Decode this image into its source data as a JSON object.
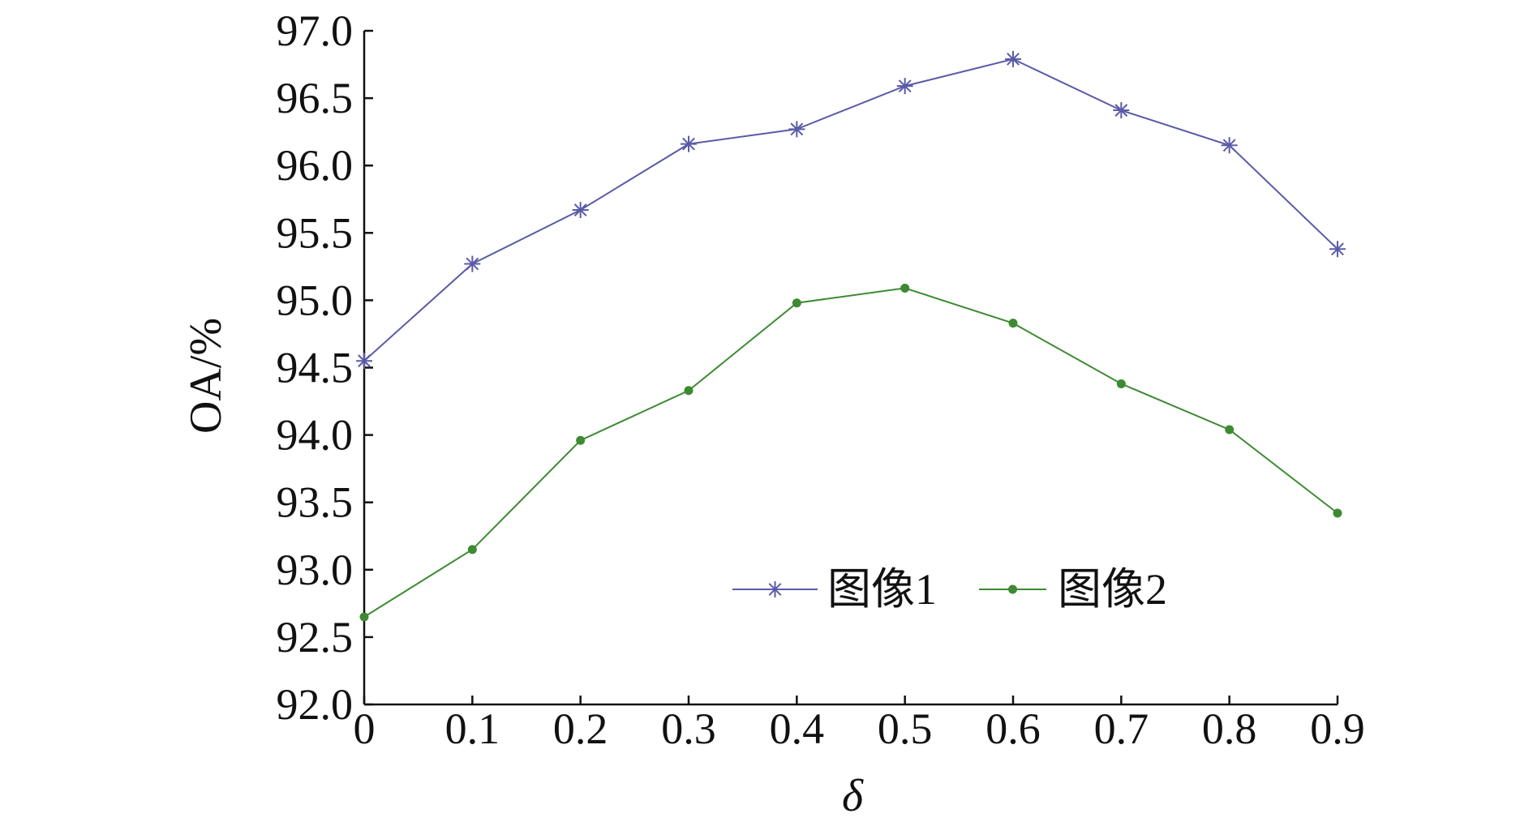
{
  "chart_data": {
    "type": "line",
    "xlabel": "δ",
    "ylabel": "OA/%",
    "x": [
      0,
      0.1,
      0.2,
      0.3,
      0.4,
      0.5,
      0.6,
      0.7,
      0.8,
      0.9
    ],
    "x_tick_labels": [
      "0",
      "0.1",
      "0.2",
      "0.3",
      "0.4",
      "0.5",
      "0.6",
      "0.7",
      "0.8",
      "0.9"
    ],
    "y_tick_labels": [
      "92.0",
      "92.5",
      "93.0",
      "93.5",
      "94.0",
      "94.5",
      "95.0",
      "95.5",
      "96.0",
      "96.5",
      "97.0"
    ],
    "xlim": [
      0,
      0.9
    ],
    "ylim": [
      92.0,
      97.0
    ],
    "grid": false,
    "legend_position": "lower-right",
    "series": [
      {
        "name": "图像1",
        "color": "#5a5aa8",
        "marker": "asterisk",
        "values": [
          94.55,
          95.27,
          95.67,
          96.16,
          96.27,
          96.59,
          96.79,
          96.41,
          96.15,
          95.38
        ]
      },
      {
        "name": "图像2",
        "color": "#3d8a32",
        "marker": "dot",
        "values": [
          92.65,
          93.15,
          93.96,
          94.33,
          94.98,
          95.09,
          94.83,
          94.38,
          94.04,
          93.42
        ]
      }
    ]
  }
}
